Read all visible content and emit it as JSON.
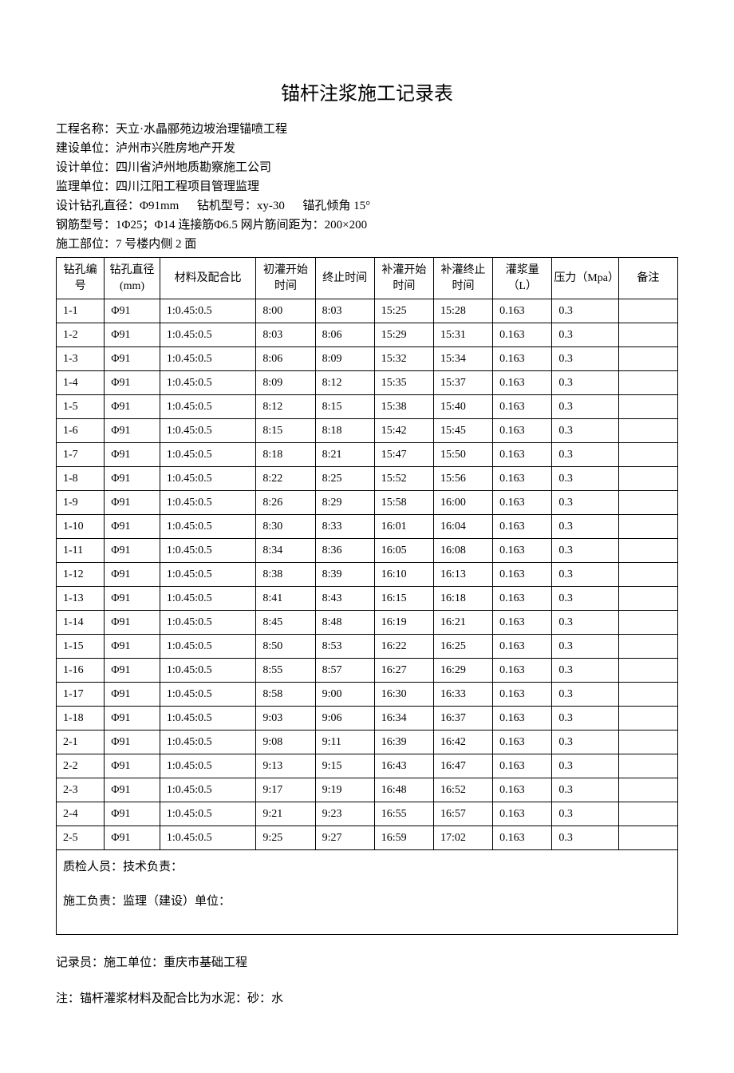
{
  "title": "锚杆注浆施工记录表",
  "meta": {
    "project_name_label": "工程名称：",
    "project_name": "天立·水晶郦苑边坡治理锚喷工程",
    "construction_unit_label": "建设单位：",
    "construction_unit": "泸州市兴胜房地产开发",
    "design_unit_label": "设计单位：",
    "design_unit": "四川省泸州地质勘察施工公司",
    "supervision_unit_label": "监理单位：",
    "supervision_unit": "四川江阳工程项目管理监理",
    "design_params_label": "设计钻孔直径：",
    "design_diameter": "Φ91mm",
    "drill_model_label": "钻机型号：",
    "drill_model": "xy-30",
    "anchor_angle_label": "锚孔倾角",
    "anchor_angle": "15°",
    "rebar_label": "钢筋型号：",
    "rebar": "1Φ25；Φ14 连接筋Φ6.5 网片筋间距为：200×200",
    "location_label": "施工部位：",
    "location": "7 号楼内侧 2 面"
  },
  "table": {
    "columns": [
      "钻孔编号",
      "钻孔直径 (mm)",
      "材料及配合比",
      "初灌开始时间",
      "终止时间",
      "补灌开始时间",
      "补灌终止时间",
      "灌浆量（L）",
      "压力（Mpa）",
      "备注"
    ],
    "rows": [
      [
        "1-1",
        "Φ91",
        "1:0.45:0.5",
        "8:00",
        "8:03",
        "15:25",
        "15:28",
        "0.163",
        "0.3",
        ""
      ],
      [
        "1-2",
        "Φ91",
        "1:0.45:0.5",
        "8:03",
        "8:06",
        "15:29",
        "15:31",
        "0.163",
        "0.3",
        ""
      ],
      [
        "1-3",
        "Φ91",
        "1:0.45:0.5",
        "8:06",
        "8:09",
        "15:32",
        "15:34",
        "0.163",
        "0.3",
        ""
      ],
      [
        "1-4",
        "Φ91",
        "1:0.45:0.5",
        "8:09",
        "8:12",
        "15:35",
        "15:37",
        "0.163",
        "0.3",
        ""
      ],
      [
        "1-5",
        "Φ91",
        "1:0.45:0.5",
        "8:12",
        "8:15",
        "15:38",
        "15:40",
        "0.163",
        "0.3",
        ""
      ],
      [
        "1-6",
        "Φ91",
        "1:0.45:0.5",
        "8:15",
        "8:18",
        "15:42",
        "15:45",
        "0.163",
        "0.3",
        ""
      ],
      [
        "1-7",
        "Φ91",
        "1:0.45:0.5",
        "8:18",
        "8:21",
        "15:47",
        "15:50",
        "0.163",
        "0.3",
        ""
      ],
      [
        "1-8",
        "Φ91",
        "1:0.45:0.5",
        "8:22",
        "8:25",
        "15:52",
        "15:56",
        "0.163",
        "0.3",
        ""
      ],
      [
        "1-9",
        "Φ91",
        "1:0.45:0.5",
        "8:26",
        "8:29",
        "15:58",
        "16:00",
        "0.163",
        "0.3",
        ""
      ],
      [
        "1-10",
        "Φ91",
        "1:0.45:0.5",
        "8:30",
        "8:33",
        "16:01",
        "16:04",
        "0.163",
        "0.3",
        ""
      ],
      [
        "1-11",
        "Φ91",
        "1:0.45:0.5",
        "8:34",
        "8:36",
        "16:05",
        "16:08",
        "0.163",
        "0.3",
        ""
      ],
      [
        "1-12",
        "Φ91",
        "1:0.45:0.5",
        "8:38",
        "8:39",
        "16:10",
        "16:13",
        "0.163",
        "0.3",
        ""
      ],
      [
        "1-13",
        "Φ91",
        "1:0.45:0.5",
        "8:41",
        "8:43",
        "16:15",
        "16:18",
        "0.163",
        "0.3",
        ""
      ],
      [
        "1-14",
        "Φ91",
        "1:0.45:0.5",
        "8:45",
        "8:48",
        "16:19",
        "16:21",
        "0.163",
        "0.3",
        ""
      ],
      [
        "1-15",
        "Φ91",
        "1:0.45:0.5",
        "8:50",
        "8:53",
        "16:22",
        "16:25",
        "0.163",
        "0.3",
        ""
      ],
      [
        "1-16",
        "Φ91",
        "1:0.45:0.5",
        "8:55",
        "8:57",
        "16:27",
        "16:29",
        "0.163",
        "0.3",
        ""
      ],
      [
        "1-17",
        "Φ91",
        "1:0.45:0.5",
        "8:58",
        "9:00",
        "16:30",
        "16:33",
        "0.163",
        "0.3",
        ""
      ],
      [
        "1-18",
        "Φ91",
        "1:0.45:0.5",
        "9:03",
        "9:06",
        "16:34",
        "16:37",
        "0.163",
        "0.3",
        ""
      ],
      [
        "2-1",
        "Φ91",
        "1:0.45:0.5",
        "9:08",
        "9:11",
        "16:39",
        "16:42",
        "0.163",
        "0.3",
        ""
      ],
      [
        "2-2",
        "Φ91",
        "1:0.45:0.5",
        "9:13",
        "9:15",
        "16:43",
        "16:47",
        "0.163",
        "0.3",
        ""
      ],
      [
        "2-3",
        "Φ91",
        "1:0.45:0.5",
        "9:17",
        "9:19",
        "16:48",
        "16:52",
        "0.163",
        "0.3",
        ""
      ],
      [
        "2-4",
        "Φ91",
        "1:0.45:0.5",
        "9:21",
        "9:23",
        "16:55",
        "16:57",
        "0.163",
        "0.3",
        ""
      ],
      [
        "2-5",
        "Φ91",
        "1:0.45:0.5",
        "9:25",
        "9:27",
        "16:59",
        "17:02",
        "0.163",
        "0.3",
        ""
      ]
    ]
  },
  "footer": {
    "line1": "质检人员：技术负责：",
    "line2": "施工负责：监理（建设）单位：",
    "line3": "记录员：施工单位：重庆市基础工程",
    "note": "注：锚杆灌浆材料及配合比为水泥：砂：水"
  }
}
